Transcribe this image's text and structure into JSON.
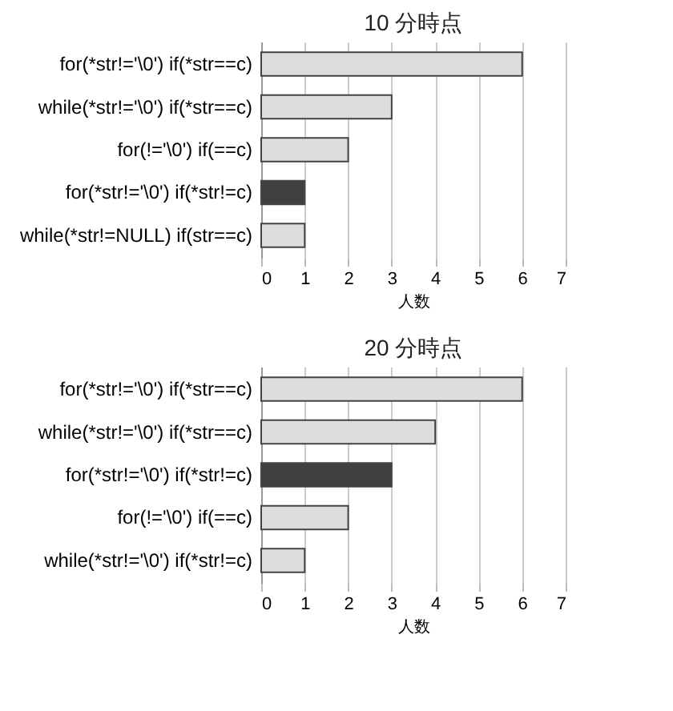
{
  "chart_data": [
    {
      "type": "bar",
      "title": "10 分時点",
      "orientation": "horizontal",
      "xlabel": "人数",
      "categories": [
        "for(*str!='\\0')  if(*str==c)",
        "while(*str!='\\0')  if(*str==c)",
        "for(!='\\0')  if(==c)",
        "for(*str!='\\0')  if(*str!=c)",
        "while(*str!=NULL)  if(str==c)"
      ],
      "values": [
        6,
        3,
        2,
        1,
        1
      ],
      "colors": [
        "#dddddd",
        "#dddddd",
        "#dddddd",
        "#404040",
        "#dddddd"
      ],
      "xlim": [
        0,
        7
      ],
      "xticks": [
        0,
        1,
        2,
        3,
        4,
        5,
        6,
        7
      ],
      "grid": "x"
    },
    {
      "type": "bar",
      "title": "20 分時点",
      "orientation": "horizontal",
      "xlabel": "人数",
      "categories": [
        "for(*str!='\\0')  if(*str==c)",
        "while(*str!='\\0')  if(*str==c)",
        "for(*str!='\\0')  if(*str!=c)",
        "for(!='\\0')  if(==c)",
        "while(*str!='\\0')  if(*str!=c)"
      ],
      "values": [
        6,
        4,
        3,
        2,
        1
      ],
      "colors": [
        "#dddddd",
        "#dddddd",
        "#404040",
        "#dddddd",
        "#dddddd"
      ],
      "xlim": [
        0,
        7
      ],
      "xticks": [
        0,
        1,
        2,
        3,
        4,
        5,
        6,
        7
      ],
      "grid": "x"
    }
  ]
}
